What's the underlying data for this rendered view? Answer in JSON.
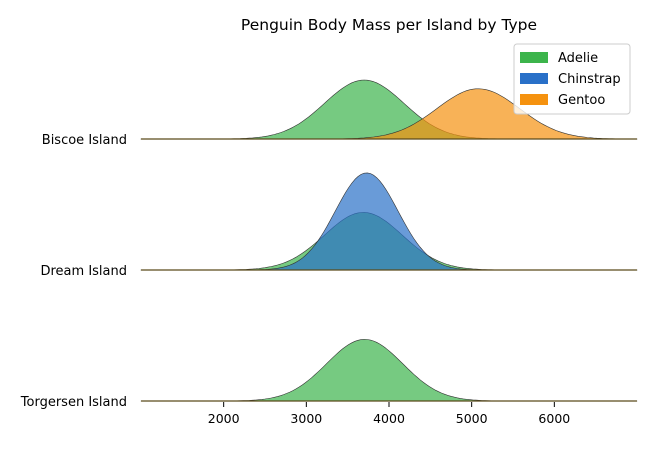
{
  "chart_data": {
    "type": "area",
    "title": "Penguin Body Mass per Island by Type",
    "xlabel": "",
    "ylabel": "",
    "xlim": [
      1000,
      7000
    ],
    "x_ticks": [
      2000,
      3000,
      4000,
      5000,
      6000
    ],
    "x_tick_labels": [
      "2000",
      "3000",
      "4000",
      "5000",
      "6000"
    ],
    "rows": [
      "Biscoe Island",
      "Dream Island",
      "Torgersen Island"
    ],
    "legend": {
      "placement": "top-right",
      "entries": [
        "Adelie",
        "Chinstrap",
        "Gentoo"
      ]
    },
    "grid": false,
    "series": [
      {
        "name": "Adelie",
        "color": "#3cb44b",
        "distributions": [
          {
            "row": "Biscoe Island",
            "mean": 3700,
            "sd": 480,
            "peak": 0.88
          },
          {
            "row": "Dream Island",
            "mean": 3690,
            "sd": 470,
            "peak": 0.86
          },
          {
            "row": "Torgersen Island",
            "mean": 3705,
            "sd": 460,
            "peak": 0.92
          }
        ]
      },
      {
        "name": "Chinstrap",
        "color": "#2970c8",
        "distributions": [
          {
            "row": "Dream Island",
            "mean": 3730,
            "sd": 380,
            "peak": 1.45
          }
        ]
      },
      {
        "name": "Gentoo",
        "color": "#f5920f",
        "distributions": [
          {
            "row": "Biscoe Island",
            "mean": 5080,
            "sd": 500,
            "peak": 0.75
          }
        ]
      }
    ]
  }
}
